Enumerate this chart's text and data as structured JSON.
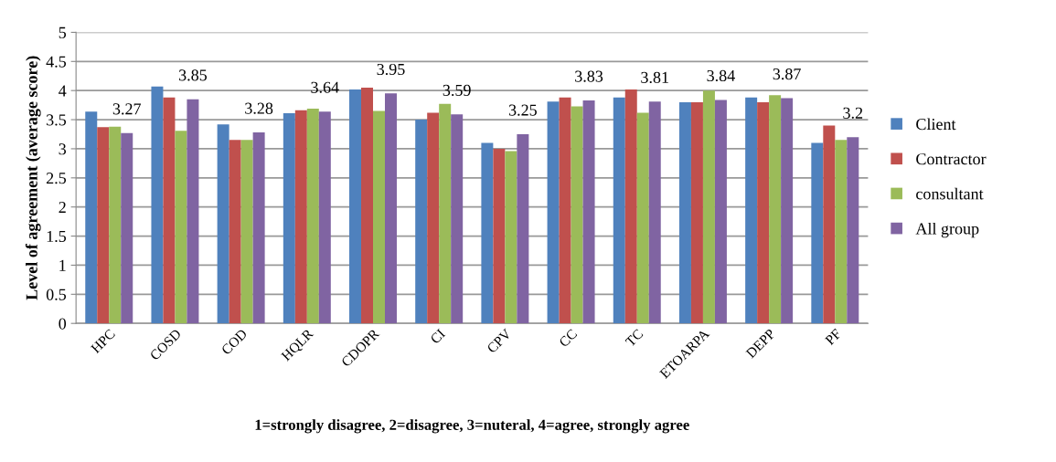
{
  "chart_data": {
    "type": "bar",
    "xlabel": "1=strongly disagree, 2=disagree, 3=nuteral, 4=agree, strongly agree",
    "ylabel": "Level of agreement (average score)",
    "categories": [
      "HPC",
      "COSD",
      "COD",
      "HQLR",
      "CDOPR",
      "CI",
      "CPV",
      "CC",
      "TC",
      "ETOARPA",
      "DEPP",
      "PF"
    ],
    "series": [
      {
        "name": "Client",
        "color": "#4f81bd",
        "values": [
          3.64,
          4.07,
          3.42,
          3.61,
          4.02,
          3.5,
          3.1,
          3.81,
          3.88,
          3.8,
          3.88,
          3.1
        ]
      },
      {
        "name": "Contractor",
        "color": "#c0504d",
        "values": [
          3.37,
          3.88,
          3.15,
          3.66,
          4.05,
          3.62,
          3.0,
          3.88,
          4.02,
          3.8,
          3.8,
          3.4
        ]
      },
      {
        "name": "consultant",
        "color": "#9bbb59",
        "values": [
          3.38,
          3.31,
          3.15,
          3.69,
          3.65,
          3.77,
          2.96,
          3.73,
          3.62,
          4.0,
          3.92,
          3.15
        ]
      },
      {
        "name": "All group",
        "color": "#8064a2",
        "values": [
          3.27,
          3.85,
          3.28,
          3.64,
          3.95,
          3.59,
          3.25,
          3.83,
          3.81,
          3.84,
          3.87,
          3.2
        ],
        "value_labels": [
          "3.27",
          "3.85",
          "3.28",
          "3.64",
          "3.95",
          "3.59",
          "3.25",
          "3.83",
          "3.81",
          "3.84",
          "3.87",
          "3.2"
        ]
      }
    ],
    "ylim": [
      0,
      5
    ],
    "yticks": [
      0,
      0.5,
      1,
      1.5,
      2,
      2.5,
      3,
      3.5,
      4,
      4.5,
      5
    ],
    "grid": "y",
    "legend": "right"
  }
}
